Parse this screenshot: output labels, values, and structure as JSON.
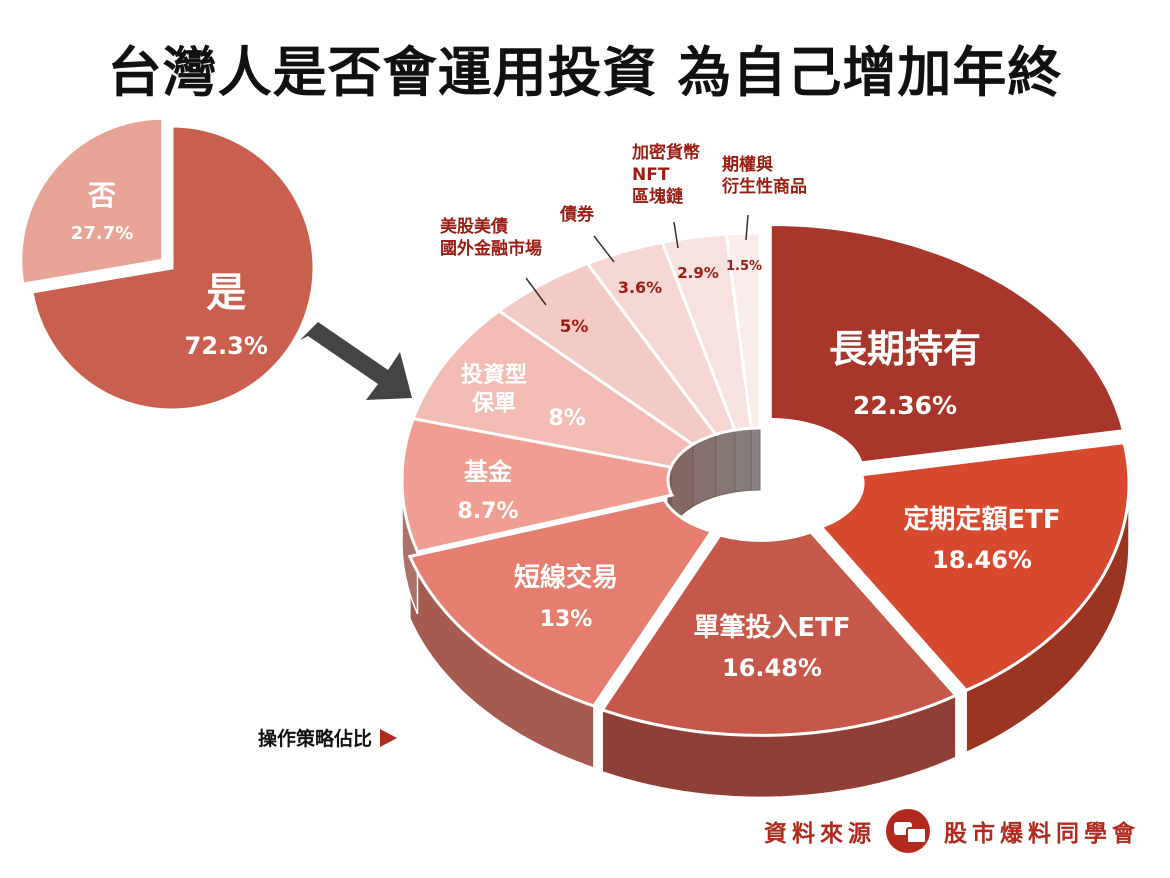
{
  "title": "台灣人是否會運用投資  為自己增加年終",
  "caption": "操作策略佔比",
  "source": {
    "label": "資料來源",
    "brand": "股市爆料同學會",
    "logo_icon": "chat-bubbles-icon"
  },
  "arrow_icon": "right-arrow-icon",
  "chart_data": [
    {
      "type": "pie",
      "categories": [
        "否",
        "是"
      ],
      "values": [
        27.7,
        72.3
      ],
      "value_labels": [
        "27.7%",
        "72.3%"
      ],
      "colors": [
        "#e7a497",
        "#c9604e"
      ]
    },
    {
      "type": "pie",
      "variant": "3d-donut",
      "categories": [
        "長期持有",
        "定期定額ETF",
        "單筆投入ETF",
        "短線交易",
        "基金",
        "投資型保單",
        "美股美債國外金融市場",
        "債券",
        "加密貨幣NFT區塊鏈",
        "期權與衍生性商品"
      ],
      "values": [
        22.36,
        18.46,
        16.48,
        13,
        8.7,
        8,
        5,
        3.6,
        2.9,
        1.5
      ],
      "value_labels": [
        "22.36%",
        "18.46%",
        "16.48%",
        "13%",
        "8.7%",
        "8%",
        "5%",
        "3.6%",
        "2.9%",
        "1.5%"
      ],
      "label_lines": [
        [
          "長期持有"
        ],
        [
          "定期定額ETF"
        ],
        [
          "單筆投入ETF"
        ],
        [
          "短線交易"
        ],
        [
          "基金"
        ],
        [
          "投資型",
          "保單"
        ],
        [
          "美股美債",
          "國外金融市場"
        ],
        [
          "債券"
        ],
        [
          "加密貨幣",
          "NFT",
          "區塊鏈"
        ],
        [
          "期權與",
          "衍生性商品"
        ]
      ],
      "colors": [
        "#a8362a",
        "#d6492f",
        "#c6584a",
        "#e57e6e",
        "#ef9e91",
        "#f2bbb3",
        "#f4cac4",
        "#f6d7d3",
        "#f8e2df",
        "#faecea"
      ]
    }
  ]
}
